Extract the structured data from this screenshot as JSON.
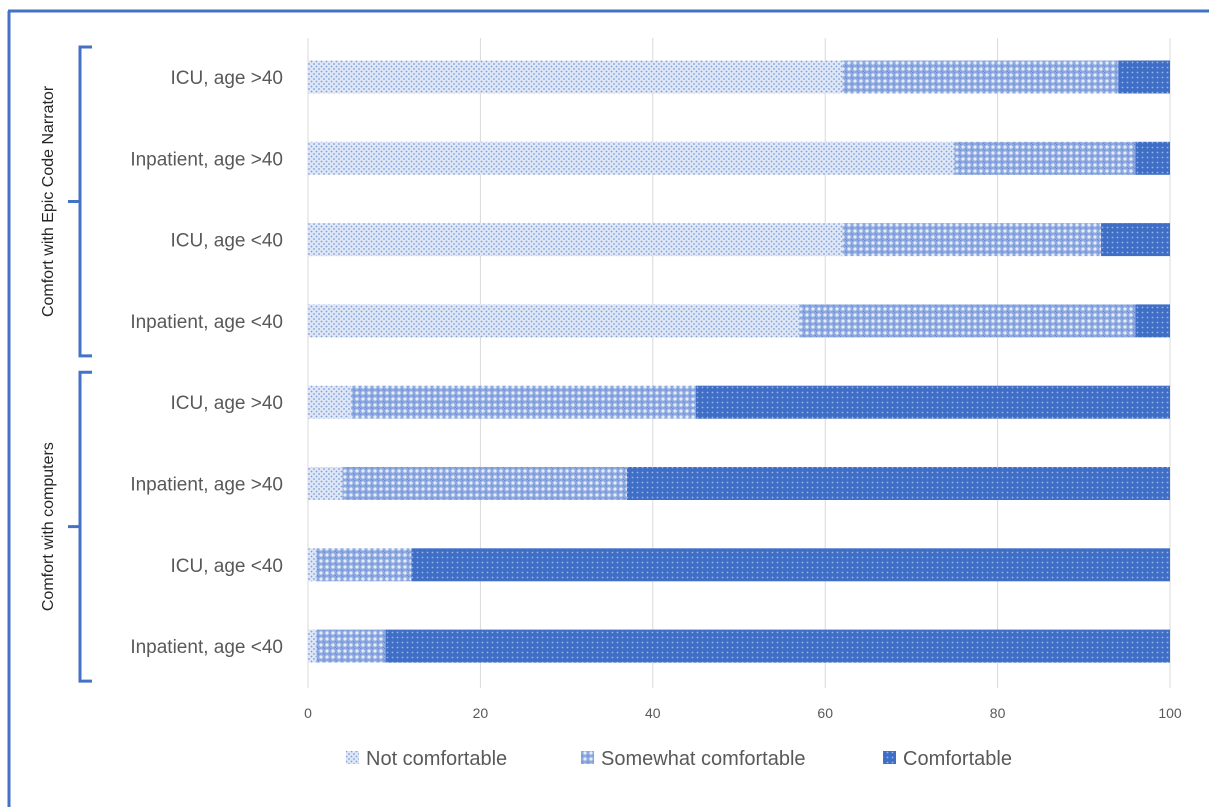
{
  "chart_data": {
    "type": "bar",
    "orientation": "horizontal",
    "stacked": true,
    "categories": [
      "ICU, age >40",
      "Inpatient, age >40",
      "ICU, age <40",
      "Inpatient,  age <40",
      "ICU, age >40",
      "Inpatient, age >40",
      "ICU, age <40",
      "Inpatient, age <40"
    ],
    "groups": [
      {
        "label": "Comfort with Epic Code Narrator",
        "categories": [
          0,
          1,
          2,
          3
        ]
      },
      {
        "label": "Comfort with computers",
        "categories": [
          4,
          5,
          6,
          7
        ]
      }
    ],
    "series": [
      {
        "name": "Not comfortable",
        "values": [
          62,
          75,
          62,
          57,
          5,
          4,
          1,
          1
        ]
      },
      {
        "name": "Somewhat comfortable",
        "values": [
          32,
          21,
          30,
          39,
          40,
          33,
          11,
          8
        ]
      },
      {
        "name": "Comfortable",
        "values": [
          6,
          4,
          8,
          4,
          55,
          63,
          88,
          91
        ]
      }
    ],
    "xlim": [
      0,
      100
    ],
    "xticks": [
      "0",
      "20",
      "40",
      "60",
      "80",
      "100"
    ],
    "grid": "vertical",
    "legend": "bottom",
    "colors": {
      "not_comfortable": "#9db3e0",
      "somewhat_comfortable": "#6f8fd6",
      "comfortable": "#4472c4",
      "frame": "#4472c4",
      "bracket": "#4472c4",
      "grid": "#d9d9d9"
    }
  }
}
